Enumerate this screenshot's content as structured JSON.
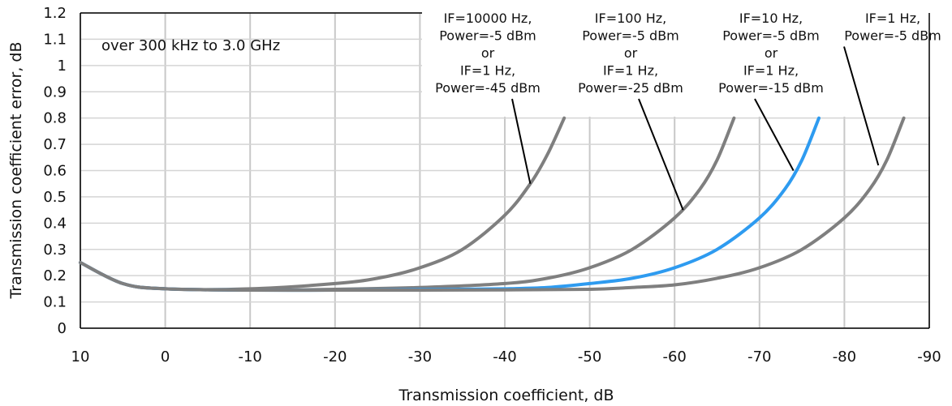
{
  "chart_data": {
    "type": "line",
    "title": "",
    "note": "over 300 kHz to 3.0 GHz",
    "xlabel": "Transmission coefficient, dB",
    "ylabel": "Transmission coefficient error, dB",
    "xlim": [
      10,
      -90
    ],
    "ylim": [
      0,
      1.2
    ],
    "x_ticks": [
      10,
      0,
      -10,
      -20,
      -30,
      -40,
      -50,
      -60,
      -70,
      -80,
      -90
    ],
    "x_tick_labels": [
      "10",
      "0",
      "-10",
      "-20",
      "-30",
      "-40",
      "-50",
      "-60",
      "-70",
      "-80",
      "-90"
    ],
    "y_ticks": [
      0,
      0.1,
      0.2,
      0.3,
      0.4,
      0.5,
      0.6,
      0.7,
      0.8,
      0.9,
      1,
      1.1,
      1.2
    ],
    "y_tick_labels": [
      "0",
      "0.1",
      "0.2",
      "0.3",
      "0.4",
      "0.5",
      "0.6",
      "0.7",
      "0.8",
      "0.9",
      "1",
      "1.1",
      "1.2"
    ],
    "grid": true,
    "series": [
      {
        "color": "#7f7f7f",
        "x": [
          10,
          5,
          0,
          -10,
          -20,
          -25,
          -30,
          -35,
          -40,
          -43,
          -45,
          -47
        ],
        "y": [
          0.25,
          0.17,
          0.15,
          0.15,
          0.17,
          0.19,
          0.23,
          0.3,
          0.43,
          0.55,
          0.66,
          0.8
        ]
      },
      {
        "color": "#7f7f7f",
        "x": [
          10,
          5,
          0,
          -10,
          -20,
          -30,
          -40,
          -45,
          -50,
          -55,
          -60,
          -63,
          -65,
          -67
        ],
        "y": [
          0.25,
          0.17,
          0.15,
          0.145,
          0.148,
          0.155,
          0.17,
          0.19,
          0.23,
          0.3,
          0.42,
          0.53,
          0.64,
          0.8
        ]
      },
      {
        "color": "#2e9bf0",
        "x": [
          10,
          5,
          0,
          -10,
          -20,
          -30,
          -40,
          -45,
          -50,
          -55,
          -60,
          -65,
          -70,
          -73,
          -75,
          -77
        ],
        "y": [
          0.25,
          0.17,
          0.15,
          0.145,
          0.145,
          0.147,
          0.15,
          0.155,
          0.17,
          0.19,
          0.23,
          0.3,
          0.42,
          0.53,
          0.64,
          0.8
        ]
      },
      {
        "color": "#7f7f7f",
        "x": [
          10,
          5,
          0,
          -10,
          -20,
          -30,
          -40,
          -50,
          -55,
          -60,
          -65,
          -70,
          -75,
          -80,
          -83,
          -85,
          -87
        ],
        "y": [
          0.25,
          0.17,
          0.15,
          0.145,
          0.145,
          0.145,
          0.146,
          0.148,
          0.155,
          0.165,
          0.19,
          0.23,
          0.3,
          0.42,
          0.53,
          0.64,
          0.8
        ]
      }
    ],
    "annotations": [
      {
        "lines": [
          "IF=10000 Hz,",
          "Power=-5 dBm",
          "or",
          "IF=1 Hz,",
          "Power=-45 dBm"
        ],
        "target": [
          -43,
          0.55
        ]
      },
      {
        "lines": [
          "IF=100 Hz,",
          "Power=-5 dBm",
          "or",
          "IF=1 Hz,",
          "Power=-25 dBm"
        ],
        "target": [
          -61,
          0.45
        ]
      },
      {
        "lines": [
          "IF=10 Hz,",
          "Power=-5 dBm",
          "or",
          "IF=1 Hz,",
          "Power=-15 dBm"
        ],
        "target": [
          -74,
          0.6
        ]
      },
      {
        "lines": [
          "IF=1 Hz,",
          "Power=-5 dBm"
        ],
        "target": [
          -84,
          0.62
        ]
      }
    ]
  }
}
